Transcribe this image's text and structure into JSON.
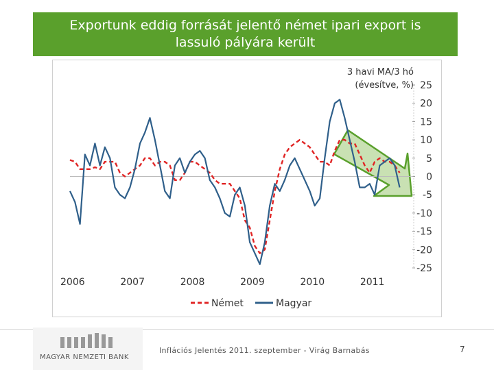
{
  "slide": {
    "title_line1": "Exportunk eddig forrását jelentő német ipari export is",
    "title_line2": "lassuló pályára került",
    "footer": "Inflációs Jelentés 2011. szeptember - Virág Barnabás",
    "page_number": "7",
    "logo_text": "MAGYAR NEMZETI BANK",
    "colors": {
      "title_bg": "#5aa02c",
      "nemet": "#e02424",
      "magyar": "#2f5f8a",
      "arrow_fill": "#b7d79a",
      "arrow_stroke": "#5aa02c"
    }
  },
  "chart_data": {
    "type": "line",
    "ylabel_line1": "3 havi MA/3 hó",
    "ylabel_line2": "(évesítve, %)",
    "ylim": [
      -25,
      25
    ],
    "yticks": [
      25,
      20,
      15,
      10,
      5,
      0,
      -5,
      -10,
      -15,
      -20,
      -25
    ],
    "xlim": [
      2006.0,
      2011.7
    ],
    "xticks": [
      "2006",
      "2007",
      "2008",
      "2009",
      "2010",
      "2011"
    ],
    "grid": false,
    "legend_position": "bottom",
    "annotation": "green downward arrow over 2010 Q3 - 2011 Q2",
    "x": [
      2006.0,
      2006.083,
      2006.167,
      2006.25,
      2006.333,
      2006.417,
      2006.5,
      2006.583,
      2006.667,
      2006.75,
      2006.833,
      2006.917,
      2007.0,
      2007.083,
      2007.167,
      2007.25,
      2007.333,
      2007.417,
      2007.5,
      2007.583,
      2007.667,
      2007.75,
      2007.833,
      2007.917,
      2008.0,
      2008.083,
      2008.167,
      2008.25,
      2008.333,
      2008.417,
      2008.5,
      2008.583,
      2008.667,
      2008.75,
      2008.833,
      2008.917,
      2009.0,
      2009.083,
      2009.167,
      2009.25,
      2009.333,
      2009.417,
      2009.5,
      2009.583,
      2009.667,
      2009.75,
      2009.833,
      2009.917,
      2010.0,
      2010.083,
      2010.167,
      2010.25,
      2010.333,
      2010.417,
      2010.5,
      2010.583,
      2010.667,
      2010.75,
      2010.833,
      2010.917,
      2011.0,
      2011.083,
      2011.167,
      2011.25,
      2011.333,
      2011.417,
      2011.5
    ],
    "series": [
      {
        "name": "Német",
        "style": "dashed",
        "values": [
          4.5,
          4,
          2,
          2,
          2,
          2.5,
          2,
          4,
          4,
          4,
          1,
          0,
          1,
          2,
          3,
          5,
          5,
          3,
          4,
          4,
          3,
          -1,
          -1,
          1,
          4,
          4,
          3,
          2,
          1,
          -1,
          -2,
          -2,
          -2,
          -4,
          -6,
          -12,
          -14,
          -19,
          -21,
          -20,
          -12,
          -4,
          2,
          6,
          8,
          9,
          10,
          9,
          8,
          6,
          4,
          4,
          3,
          7,
          10,
          10,
          9,
          9,
          6,
          3,
          1,
          4,
          5,
          4,
          4,
          3,
          1
        ]
      },
      {
        "name": "Magyar",
        "style": "solid",
        "values": [
          -4,
          -7,
          -13,
          6,
          3,
          9,
          3,
          8,
          5,
          -3,
          -5,
          -6,
          -3,
          2,
          9,
          12,
          16,
          10,
          3,
          -4,
          -6,
          3,
          5,
          1,
          4,
          6,
          7,
          5,
          -1,
          -3,
          -6,
          -10,
          -11,
          -5,
          -3,
          -8,
          -18,
          -21,
          -24,
          -18,
          -8,
          -2,
          -4,
          -1,
          3,
          5,
          2,
          -1,
          -4,
          -8,
          -6,
          5,
          15,
          20,
          21,
          16,
          10,
          4,
          -3,
          -3,
          -2,
          -5,
          3,
          4,
          5,
          3,
          -3
        ]
      }
    ]
  }
}
